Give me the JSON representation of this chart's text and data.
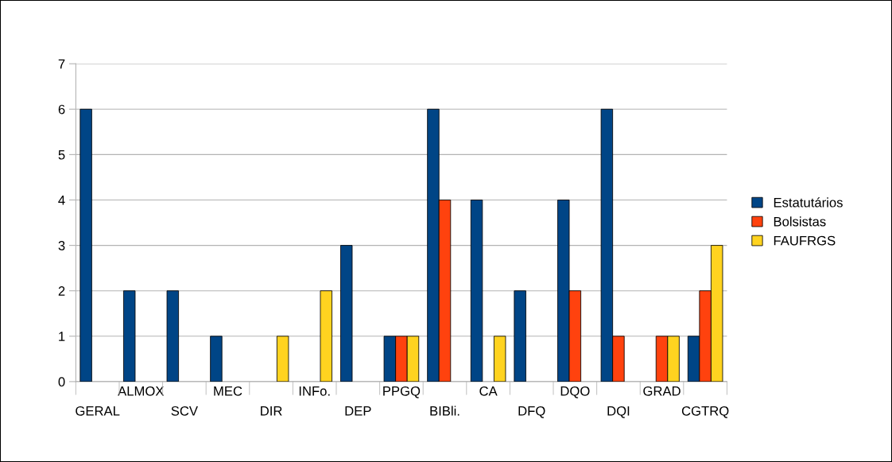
{
  "chart_data": {
    "type": "bar",
    "categories": [
      "GERAL",
      "ALMOX",
      "SCV",
      "MEC",
      "DIR",
      "INFo.",
      "DEP",
      "PPGQ",
      "BIBli.",
      "CA",
      "DFQ",
      "DQO",
      "DQI",
      "GRAD",
      "CGTRQ"
    ],
    "series": [
      {
        "name": "Estatutários",
        "color": "#004586",
        "values": [
          6,
          2,
          2,
          1,
          null,
          null,
          3,
          1,
          6,
          4,
          2,
          4,
          6,
          null,
          1
        ]
      },
      {
        "name": "Bolsistas",
        "color": "#ff420e",
        "values": [
          null,
          null,
          null,
          null,
          null,
          null,
          null,
          1,
          4,
          null,
          null,
          2,
          1,
          1,
          2
        ]
      },
      {
        "name": "FAUFRGS",
        "color": "#ffd320",
        "values": [
          null,
          null,
          null,
          null,
          1,
          2,
          null,
          1,
          null,
          1,
          null,
          null,
          null,
          1,
          3
        ]
      }
    ],
    "ylim": [
      0,
      7
    ],
    "yticks": [
      0,
      1,
      2,
      3,
      4,
      5,
      6,
      7
    ],
    "grid": "y",
    "legend": "right"
  }
}
